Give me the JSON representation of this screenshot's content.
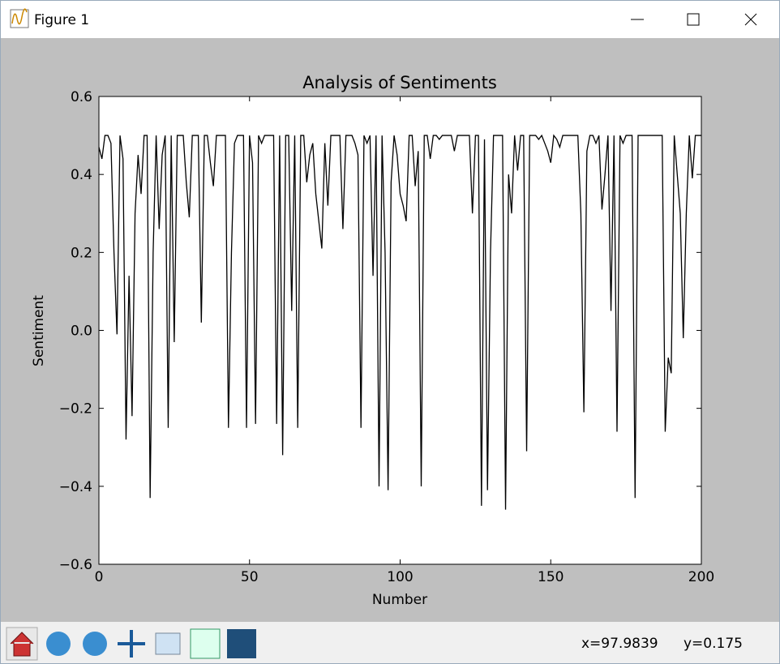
{
  "window": {
    "title": "Figure 1"
  },
  "status": {
    "x": "x=97.9839",
    "y": "y=0.175"
  },
  "chart_data": {
    "type": "line",
    "title": "Analysis of Sentiments",
    "x_label": "Number",
    "y_label": "Sentiment",
    "color": "#000000",
    "x": [
      0,
      1,
      2,
      3,
      4,
      5,
      6,
      7,
      8,
      9,
      10,
      11,
      12,
      13,
      14,
      15,
      16,
      17,
      18,
      19,
      20,
      21,
      22,
      23,
      24,
      25,
      26,
      27,
      28,
      29,
      30,
      31,
      32,
      33,
      34,
      35,
      36,
      37,
      38,
      39,
      40,
      41,
      42,
      43,
      44,
      45,
      46,
      47,
      48,
      49,
      50,
      51,
      52,
      53,
      54,
      55,
      56,
      57,
      58,
      59,
      60,
      61,
      62,
      63,
      64,
      65,
      66,
      67,
      68,
      69,
      70,
      71,
      72,
      73,
      74,
      75,
      76,
      77,
      78,
      79,
      80,
      81,
      82,
      83,
      84,
      85,
      86,
      87,
      88,
      89,
      90,
      91,
      92,
      93,
      94,
      95,
      96,
      97,
      98,
      99,
      100,
      101,
      102,
      103,
      104,
      105,
      106,
      107,
      108,
      109,
      110,
      111,
      112,
      113,
      114,
      115,
      116,
      117,
      118,
      119,
      120,
      121,
      122,
      123,
      124,
      125,
      126,
      127,
      128,
      129,
      130,
      131,
      132,
      133,
      134,
      135,
      136,
      137,
      138,
      139,
      140,
      141,
      142,
      143,
      144,
      145,
      146,
      147,
      148,
      149,
      150,
      151,
      152,
      153,
      154,
      155,
      156,
      157,
      158,
      159,
      160,
      161,
      162,
      163,
      164,
      165,
      166,
      167,
      168,
      169,
      170,
      171,
      172,
      173,
      174,
      175,
      176,
      177,
      178,
      179,
      180,
      181,
      182,
      183,
      184,
      185,
      186,
      187,
      188,
      189,
      190,
      191,
      192,
      193,
      194,
      195,
      196,
      197,
      198,
      199,
      200
    ],
    "values": [
      0.47,
      0.44,
      0.5,
      0.5,
      0.48,
      0.2,
      -0.01,
      0.5,
      0.44,
      -0.28,
      0.14,
      -0.22,
      0.3,
      0.45,
      0.35,
      0.5,
      0.5,
      -0.43,
      0.2,
      0.5,
      0.26,
      0.45,
      0.5,
      -0.25,
      0.5,
      -0.03,
      0.5,
      0.5,
      0.5,
      0.38,
      0.29,
      0.5,
      0.5,
      0.5,
      0.02,
      0.5,
      0.5,
      0.43,
      0.37,
      0.5,
      0.5,
      0.5,
      0.5,
      -0.25,
      0.2,
      0.48,
      0.5,
      0.5,
      0.5,
      -0.25,
      0.5,
      0.43,
      -0.24,
      0.5,
      0.48,
      0.5,
      0.5,
      0.5,
      0.5,
      -0.24,
      0.5,
      -0.32,
      0.5,
      0.5,
      0.05,
      0.5,
      -0.25,
      0.5,
      0.5,
      0.38,
      0.45,
      0.48,
      0.35,
      0.28,
      0.21,
      0.48,
      0.32,
      0.5,
      0.5,
      0.5,
      0.5,
      0.26,
      0.5,
      0.5,
      0.5,
      0.48,
      0.45,
      -0.25,
      0.5,
      0.48,
      0.5,
      0.14,
      0.5,
      -0.4,
      0.5,
      0.2,
      -0.41,
      0.38,
      0.5,
      0.45,
      0.35,
      0.32,
      0.28,
      0.5,
      0.5,
      0.37,
      0.46,
      -0.4,
      0.5,
      0.5,
      0.44,
      0.5,
      0.5,
      0.49,
      0.5,
      0.5,
      0.5,
      0.5,
      0.46,
      0.5,
      0.5,
      0.5,
      0.5,
      0.5,
      0.3,
      0.5,
      0.5,
      -0.45,
      0.49,
      -0.41,
      0.2,
      0.5,
      0.5,
      0.5,
      0.5,
      -0.46,
      0.4,
      0.3,
      0.5,
      0.41,
      0.5,
      0.5,
      -0.31,
      0.5,
      0.5,
      0.5,
      0.49,
      0.5,
      0.48,
      0.46,
      0.43,
      0.5,
      0.49,
      0.47,
      0.5,
      0.5,
      0.5,
      0.5,
      0.5,
      0.5,
      0.3,
      -0.21,
      0.46,
      0.5,
      0.5,
      0.48,
      0.5,
      0.31,
      0.4,
      0.5,
      0.05,
      0.5,
      -0.26,
      0.5,
      0.48,
      0.5,
      0.5,
      0.5,
      -0.43,
      0.5,
      0.5,
      0.5,
      0.5,
      0.5,
      0.5,
      0.5,
      0.5,
      0.5,
      -0.26,
      -0.07,
      -0.11,
      0.5,
      0.4,
      0.3,
      -0.02,
      0.3,
      0.5,
      0.39,
      0.5,
      0.5,
      0.5
    ],
    "xlim": [
      0,
      200
    ],
    "xticks": [
      0,
      50,
      100,
      150,
      200
    ],
    "ylim": [
      -0.6,
      0.6
    ],
    "yticks": [
      {
        "value": -0.6,
        "label": "−0.6"
      },
      {
        "value": -0.4,
        "label": "−0.4"
      },
      {
        "value": -0.2,
        "label": "−0.2"
      },
      {
        "value": 0,
        "label": "0.0"
      },
      0.2,
      0.4,
      0.6
    ]
  }
}
